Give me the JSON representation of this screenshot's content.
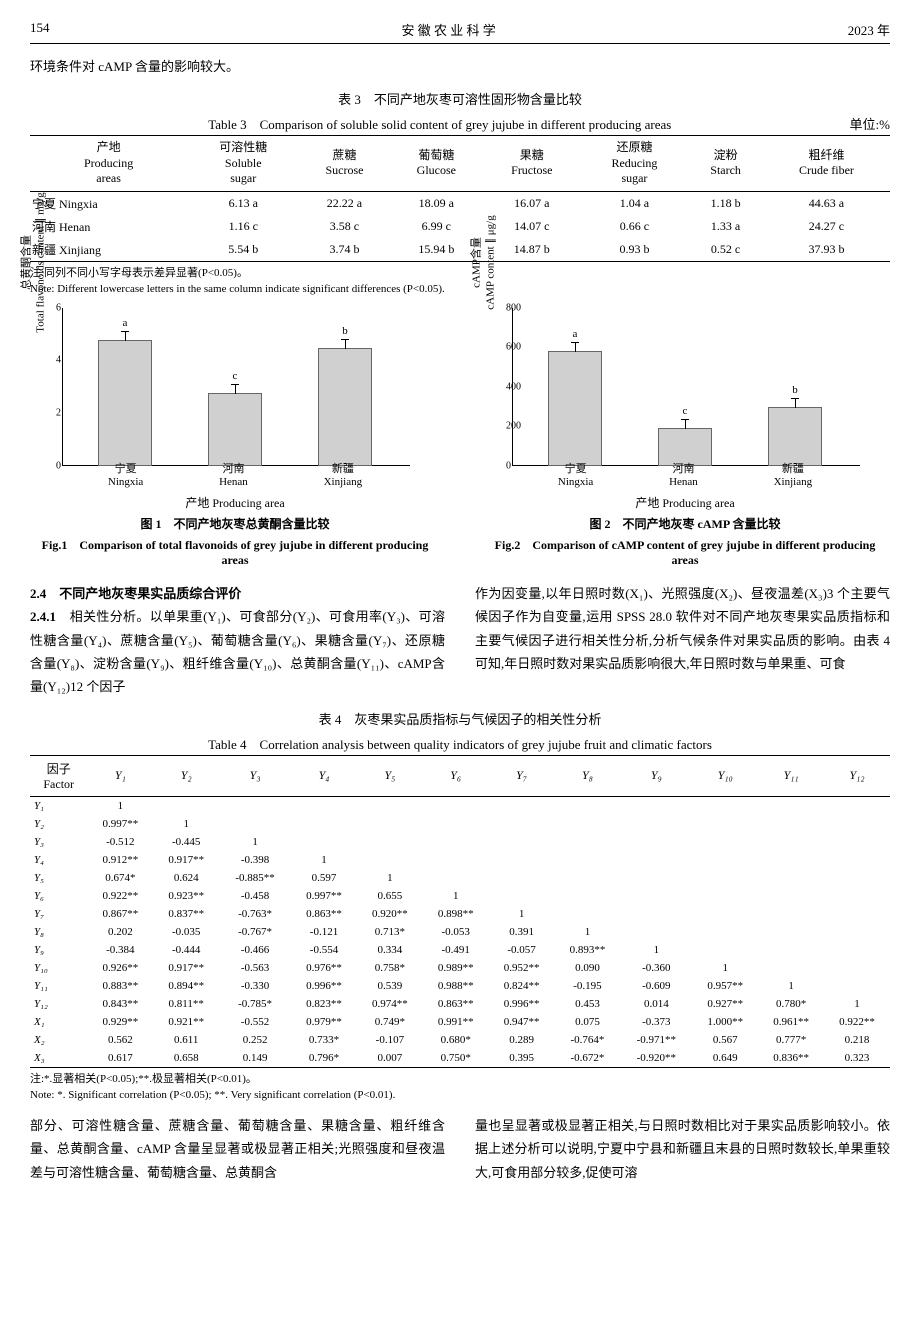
{
  "header": {
    "page": "154",
    "journal": "安 徽 农 业 科 学",
    "year": "2023 年"
  },
  "intro": "环境条件对 cAMP 含量的影响较大。",
  "table3": {
    "title_cn": "表 3　不同产地灰枣可溶性固形物含量比较",
    "title_en": "Table 3　Comparison of soluble solid content of grey jujube in different producing areas",
    "unit": "单位:%",
    "headers": [
      {
        "cn": "产地",
        "en": "Producing<br>areas"
      },
      {
        "cn": "可溶性糖",
        "en": "Soluble<br>sugar"
      },
      {
        "cn": "蔗糖",
        "en": "Sucrose"
      },
      {
        "cn": "葡萄糖",
        "en": "Glucose"
      },
      {
        "cn": "果糖",
        "en": "Fructose"
      },
      {
        "cn": "还原糖",
        "en": "Reducing<br>sugar"
      },
      {
        "cn": "淀粉",
        "en": "Starch"
      },
      {
        "cn": "粗纤维",
        "en": "Crude fiber"
      }
    ],
    "rows": [
      [
        "宁夏 Ningxia",
        "6.13 a",
        "22.22 a",
        "18.09 a",
        "16.07 a",
        "1.04 a",
        "1.18 b",
        "44.63 a"
      ],
      [
        "河南 Henan",
        "1.16 c",
        "3.58 c",
        "6.99 c",
        "14.07 c",
        "0.66 c",
        "1.33 a",
        "24.27 c"
      ],
      [
        "新疆 Xinjiang",
        "5.54 b",
        "3.74 b",
        "15.94 b",
        "14.87 b",
        "0.93 b",
        "0.52 c",
        "37.93 b"
      ]
    ],
    "note_cn": "注:同列不同小写字母表示差异显著(P<0.05)。",
    "note_en": "Note: Different lowercase letters in the same column indicate significant differences (P<0.05)."
  },
  "fig1": {
    "type": "bar",
    "ylabel": "总黄酮含量<br>Total flavonoids content ∥ mg/g",
    "ymax": 6,
    "yticks": [
      0,
      2,
      4,
      6
    ],
    "categories": [
      {
        "cn": "宁夏",
        "en": "Ningxia"
      },
      {
        "cn": "河南",
        "en": "Henan"
      },
      {
        "cn": "新疆",
        "en": "Xinjiang"
      }
    ],
    "values": [
      4.7,
      2.7,
      4.4
    ],
    "sig": [
      "a",
      "c",
      "b"
    ],
    "bar_color": "#d0d0d0",
    "border_color": "#666",
    "xtitle": "产地 Producing area",
    "cap_cn": "图 1　不同产地灰枣总黄酮含量比较",
    "cap_en": "Fig.1　Comparison of total flavonoids of grey jujube in different producing areas"
  },
  "fig2": {
    "type": "bar",
    "ylabel": "cAMP含量<br>cAMP content ∥ μg/g",
    "ymax": 800,
    "yticks": [
      0,
      200,
      400,
      600,
      800
    ],
    "categories": [
      {
        "cn": "宁夏",
        "en": "Ningxia"
      },
      {
        "cn": "河南",
        "en": "Henan"
      },
      {
        "cn": "新疆",
        "en": "Xinjiang"
      }
    ],
    "values": [
      570,
      180,
      290
    ],
    "sig": [
      "a",
      "c",
      "b"
    ],
    "bar_color": "#d0d0d0",
    "border_color": "#666",
    "xtitle": "产地 Producing area",
    "cap_cn": "图 2　不同产地灰枣 cAMP 含量比较",
    "cap_en": "Fig.2　Comparison of cAMP content of grey jujube in different producing areas"
  },
  "body": {
    "sec24": "2.4　不同产地灰枣果实品质综合评价",
    "sec241": "2.4.1",
    "left": "相关性分析。以单果重(Y₁)、可食部分(Y₂)、可食用率(Y₃)、可溶性糖含量(Y₄)、蔗糖含量(Y₅)、葡萄糖含量(Y₆)、果糖含量(Y₇)、还原糖含量(Y₈)、淀粉含量(Y₉)、粗纤维含量(Y₁₀)、总黄酮含量(Y₁₁)、cAMP含量(Y₁₂)12 个因子",
    "right": "作为因变量,以年日照时数(X₁)、光照强度(X₂)、昼夜温差(X₃)3 个主要气候因子作为自变量,运用 SPSS 28.0 软件对不同产地灰枣果实品质指标和主要气候因子进行相关性分析,分析气候条件对果实品质的影响。由表 4 可知,年日照时数对果实品质影响很大,年日照时数与单果重、可食"
  },
  "table4": {
    "title_cn": "表 4　灰枣果实品质指标与气候因子的相关性分析",
    "title_en": "Table 4　Correlation analysis between quality indicators of grey jujube fruit and climatic factors",
    "factor_label": "因子<br>Factor",
    "headers": [
      "Y₁",
      "Y₂",
      "Y₃",
      "Y₄",
      "Y₅",
      "Y₆",
      "Y₇",
      "Y₈",
      "Y₉",
      "Y₁₀",
      "Y₁₁",
      "Y₁₂"
    ],
    "rows": [
      [
        "Y₁",
        "1",
        "",
        "",
        "",
        "",
        "",
        "",
        "",
        "",
        "",
        "",
        ""
      ],
      [
        "Y₂",
        "0.997**",
        "1",
        "",
        "",
        "",
        "",
        "",
        "",
        "",
        "",
        "",
        ""
      ],
      [
        "Y₃",
        "-0.512",
        "-0.445",
        "1",
        "",
        "",
        "",
        "",
        "",
        "",
        "",
        "",
        ""
      ],
      [
        "Y₄",
        "0.912**",
        "0.917**",
        "-0.398",
        "1",
        "",
        "",
        "",
        "",
        "",
        "",
        "",
        ""
      ],
      [
        "Y₅",
        "0.674*",
        "0.624",
        "-0.885**",
        "0.597",
        "1",
        "",
        "",
        "",
        "",
        "",
        "",
        ""
      ],
      [
        "Y₆",
        "0.922**",
        "0.923**",
        "-0.458",
        "0.997**",
        "0.655",
        "1",
        "",
        "",
        "",
        "",
        "",
        ""
      ],
      [
        "Y₇",
        "0.867**",
        "0.837**",
        "-0.763*",
        "0.863**",
        "0.920**",
        "0.898**",
        "1",
        "",
        "",
        "",
        "",
        ""
      ],
      [
        "Y₈",
        "0.202",
        "-0.035",
        "-0.767*",
        "-0.121",
        "0.713*",
        "-0.053",
        "0.391",
        "1",
        "",
        "",
        "",
        ""
      ],
      [
        "Y₉",
        "-0.384",
        "-0.444",
        "-0.466",
        "-0.554",
        "0.334",
        "-0.491",
        "-0.057",
        "0.893**",
        "1",
        "",
        "",
        ""
      ],
      [
        "Y₁₀",
        "0.926**",
        "0.917**",
        "-0.563",
        "0.976**",
        "0.758*",
        "0.989**",
        "0.952**",
        "0.090",
        "-0.360",
        "1",
        "",
        ""
      ],
      [
        "Y₁₁",
        "0.883**",
        "0.894**",
        "-0.330",
        "0.996**",
        "0.539",
        "0.988**",
        "0.824**",
        "-0.195",
        "-0.609",
        "0.957**",
        "1",
        ""
      ],
      [
        "Y₁₂",
        "0.843**",
        "0.811**",
        "-0.785*",
        "0.823**",
        "0.974**",
        "0.863**",
        "0.996**",
        "0.453",
        "0.014",
        "0.927**",
        "0.780*",
        "1"
      ],
      [
        "X₁",
        "0.929**",
        "0.921**",
        "-0.552",
        "0.979**",
        "0.749*",
        "0.991**",
        "0.947**",
        "0.075",
        "-0.373",
        "1.000**",
        "0.961**",
        "0.922**"
      ],
      [
        "X₂",
        "0.562",
        "0.611",
        "0.252",
        "0.733*",
        "-0.107",
        "0.680*",
        "0.289",
        "-0.764*",
        "-0.971**",
        "0.567",
        "0.777*",
        "0.218"
      ],
      [
        "X₃",
        "0.617",
        "0.658",
        "0.149",
        "0.796*",
        "0.007",
        "0.750*",
        "0.395",
        "-0.672*",
        "-0.920**",
        "0.649",
        "0.836**",
        "0.323"
      ]
    ],
    "note_cn": "注:*.显著相关(P<0.05);**.极显著相关(P<0.01)。",
    "note_en": "Note: *. Significant correlation (P<0.05); **. Very significant correlation (P<0.01)."
  },
  "footer": {
    "left": "部分、可溶性糖含量、蔗糖含量、葡萄糖含量、果糖含量、粗纤维含量、总黄酮含量、cAMP 含量呈显著或极显著正相关;光照强度和昼夜温差与可溶性糖含量、葡萄糖含量、总黄酮含",
    "right": "量也呈显著或极显著正相关,与日照时数相比对于果实品质影响较小。依据上述分析可以说明,宁夏中宁县和新疆且末县的日照时数较长,单果重较大,可食用部分较多,促使可溶"
  }
}
